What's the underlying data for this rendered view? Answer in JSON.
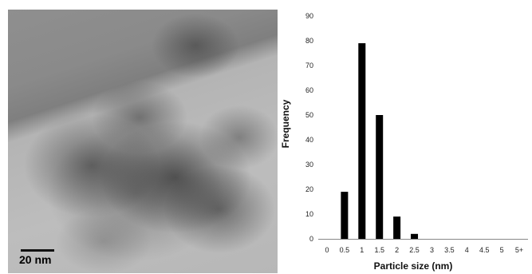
{
  "micrograph": {
    "scale_bar_label": "20 nm"
  },
  "chart_data": {
    "type": "bar",
    "categories": [
      "0",
      "0.5",
      "1",
      "1.5",
      "2",
      "2.5",
      "3",
      "3.5",
      "4",
      "4.5",
      "5",
      "5+"
    ],
    "values": [
      0,
      19,
      79,
      50,
      9,
      2,
      0,
      0,
      0,
      0,
      0,
      0
    ],
    "xlabel": "Particle size (nm)",
    "ylabel": "Frequency",
    "ylim": [
      0,
      90
    ],
    "yticks": [
      0,
      10,
      20,
      30,
      40,
      50,
      60,
      70,
      80,
      90
    ],
    "grid": false,
    "bar_color": "#000000"
  }
}
